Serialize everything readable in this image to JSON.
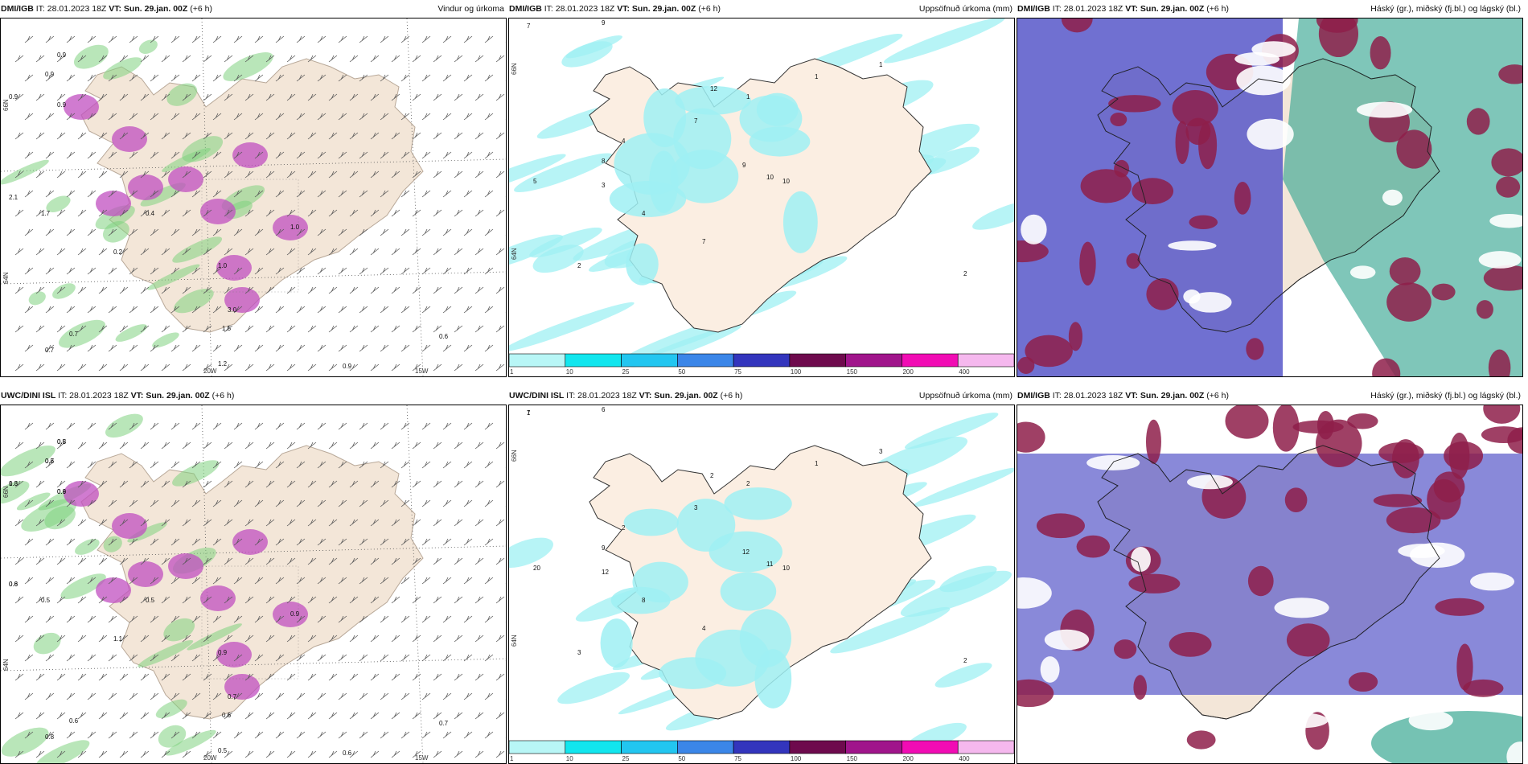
{
  "panels": [
    {
      "id": "dmi-wind",
      "kind": "wind",
      "model_label": "DMI/IGB",
      "it_label": "IT: 28.01.2023 18Z",
      "vt_label": "VT: Sun. 29.jan. 00Z",
      "lead": "(+6 h)",
      "title": "Vindur og úrkoma",
      "lat_labels": [
        "66N",
        "64N"
      ],
      "lon_labels": [
        "20W",
        "15W"
      ],
      "values": [
        "0.9",
        "0.9",
        "0.9",
        "0.9",
        "2.1",
        "1.7",
        "0.4",
        "1.0",
        "1.0",
        "3.0",
        "1.5",
        "0.7",
        "0.7",
        "0.6",
        "0.9",
        "1.2",
        "0.2"
      ],
      "colors": {
        "land": "#f3e6d8",
        "sea": "#ffffff",
        "green": "#7fd17f",
        "purple": "#c04fc0"
      }
    },
    {
      "id": "dmi-precip",
      "kind": "precip",
      "model_label": "DMI/IGB",
      "it_label": "IT: 28.01.2023 18Z",
      "vt_label": "VT: Sun. 29.jan. 00Z",
      "lead": "(+6 h)",
      "title": "Uppsöfnuð úrkoma (mm)",
      "lat_labels": [
        "66N",
        "64N"
      ],
      "values": [
        "7",
        "9",
        "1",
        "1",
        "1",
        "12",
        "7",
        "4",
        "8",
        "9",
        "10",
        "10",
        "5",
        "3",
        "4",
        "7",
        "2",
        "2"
      ],
      "colors": {
        "land": "#fbeee2",
        "sea": "#ffffff",
        "precip": "#9ff0f3"
      }
    },
    {
      "id": "dmi-cloud",
      "kind": "cloud",
      "model_label": "DMI/IGB",
      "it_label": "IT: 28.01.2023 18Z",
      "vt_label": "VT: Sun. 29.jan. 00Z",
      "lead": "(+6 h)",
      "title": "Háský (gr.), miðský (fj.bl.) og lágský (bl.)",
      "colors": {
        "land": "#f3e6d8",
        "high": "#3aa893",
        "mid": "#5757c9",
        "low": "#8e1f4a"
      }
    },
    {
      "id": "uwc-wind",
      "kind": "wind",
      "model_label": "UWC/DINI ISL",
      "it_label": "IT: 28.01.2023 18Z",
      "vt_label": "VT: Sun. 29.jan. 00Z",
      "lead": "(+6 h)",
      "title": "",
      "lat_labels": [
        "66N",
        "64N"
      ],
      "lon_labels": [
        "20W",
        "15W"
      ],
      "values": [
        "0.8",
        "0.7",
        "1.3",
        "0.9",
        "0.6",
        "0.5",
        "0.5",
        "0.9",
        "0.9",
        "0.7",
        "0.6",
        "0.6",
        "0.8",
        "0.7",
        "0.6",
        "0.5",
        "1.1",
        "0.5",
        "0.6",
        "0.8",
        "0.6",
        "0.8"
      ],
      "colors": {
        "land": "#f3e6d8",
        "sea": "#ffffff",
        "green": "#7fd17f",
        "purple": "#c04fc0"
      }
    },
    {
      "id": "uwc-precip",
      "kind": "precip",
      "model_label": "UWC/DINI ISL",
      "it_label": "IT: 28.01.2023 18Z",
      "vt_label": "VT: Sun. 29.jan. 00Z",
      "lead": "(+6 h)",
      "title": "Uppsöfnuð úrkoma (mm)",
      "lat_labels": [
        "66N",
        "64N"
      ],
      "values": [
        "7",
        "6",
        "3",
        "1",
        "2",
        "2",
        "3",
        "2",
        "9",
        "12",
        "11",
        "10",
        "20",
        "12",
        "8",
        "4",
        "3",
        "2",
        "1"
      ],
      "colors": {
        "land": "#fbeee2",
        "sea": "#ffffff",
        "precip": "#9ff0f3"
      }
    },
    {
      "id": "uwc-cloud",
      "kind": "cloud",
      "model_label": "DMI/IGB",
      "it_label": "IT: 28.01.2023 18Z",
      "vt_label": "VT: Sun. 29.jan. 00Z",
      "lead": "(+6 h)",
      "title": "Háský (gr.), miðský (fj.bl.) og lágský (bl.)",
      "colors": {
        "land": "#f3e6d8",
        "high": "#3aa893",
        "mid": "#5757c9",
        "low": "#8e1f4a"
      }
    }
  ],
  "colorbar": {
    "labels": [
      "1",
      "10",
      "25",
      "50",
      "75",
      "100",
      "150",
      "200",
      "400"
    ],
    "colors": [
      "#b8f6f6",
      "#12e6ee",
      "#22c6f0",
      "#3b86e8",
      "#3335bd",
      "#6e0a4d",
      "#a0158b",
      "#f10cb4",
      "#f5b8ee"
    ]
  }
}
